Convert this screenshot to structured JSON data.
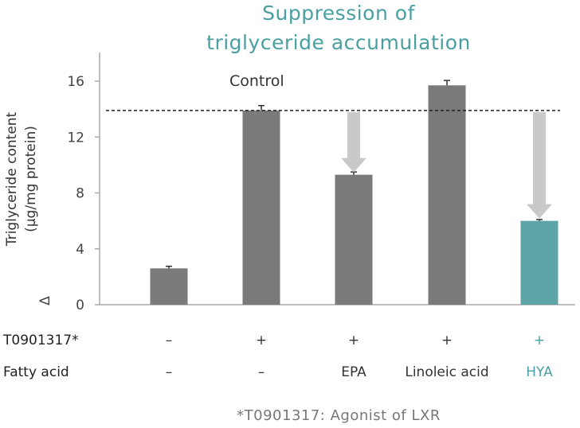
{
  "chart_data": {
    "type": "bar",
    "title_lines": [
      "Suppression of",
      "triglyceride accumulation"
    ],
    "ylabel_lines": [
      "Triglyceride content",
      "(μg/mg protein)"
    ],
    "ylim": [
      0,
      18
    ],
    "yticks": [
      0,
      4,
      8,
      12,
      16
    ],
    "categories": [
      "1",
      "2",
      "3",
      "4",
      "5"
    ],
    "values": [
      2.6,
      13.9,
      9.3,
      15.7,
      6.0
    ],
    "errors": [
      0.15,
      0.35,
      0.2,
      0.35,
      0.1
    ],
    "bar_colors": [
      "#7a7a7a",
      "#7a7a7a",
      "#7a7a7a",
      "#7a7a7a",
      "#5ea4a6"
    ],
    "reference_line": {
      "value": 13.9,
      "style": "dashed",
      "label": "Control"
    },
    "arrows": [
      {
        "category_index": 2,
        "from": 13.9,
        "to": 9.3
      },
      {
        "category_index": 4,
        "from": 13.9,
        "to": 6.0
      }
    ],
    "axis_break_symbol": "Δ",
    "rows": [
      {
        "label": "T0901317*",
        "values": [
          "–",
          "+",
          "+",
          "+",
          "+"
        ]
      },
      {
        "label": "Fatty acid",
        "values": [
          "–",
          "–",
          "EPA",
          "Linoleic acid",
          "HYA"
        ]
      }
    ],
    "highlight_index": 4,
    "highlight_color": "#4a9fa0",
    "footnote": "*T0901317: Agonist of LXR"
  }
}
